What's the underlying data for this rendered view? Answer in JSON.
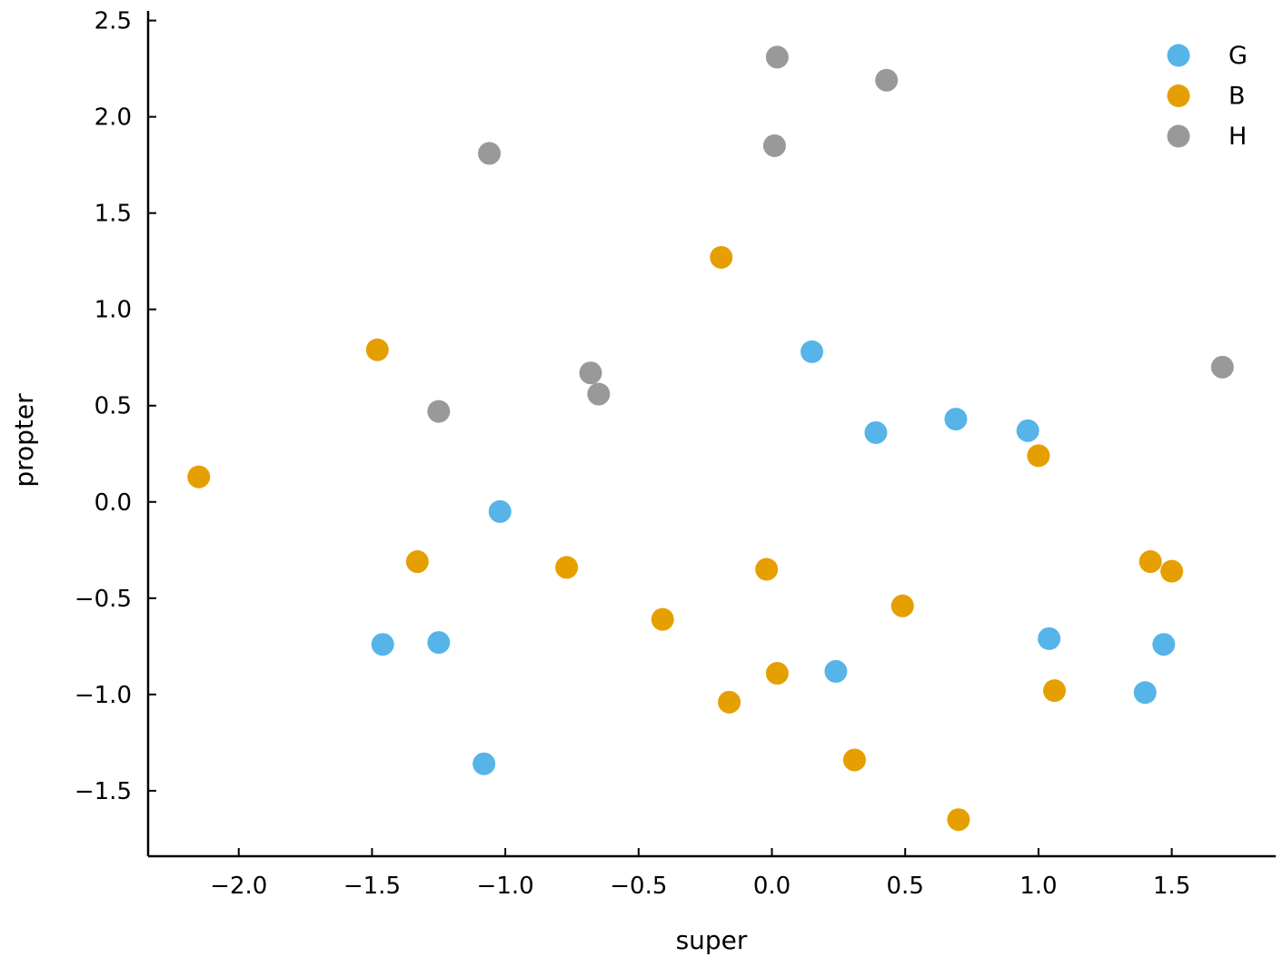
{
  "chart_data": {
    "type": "scatter",
    "xlabel": "super",
    "ylabel": "propter",
    "xlim": [
      -2.34,
      1.89
    ],
    "ylim": [
      -1.84,
      2.55
    ],
    "xticks": [
      -2.0,
      -1.5,
      -1.0,
      -0.5,
      0.0,
      0.5,
      1.0,
      1.5
    ],
    "xtick_labels": [
      "−2.0",
      "−1.5",
      "−1.0",
      "−0.5",
      "0.0",
      "0.5",
      "1.0",
      "1.5"
    ],
    "yticks": [
      -1.5,
      -1.0,
      -0.5,
      0.0,
      0.5,
      1.0,
      1.5,
      2.0,
      2.5
    ],
    "ytick_labels": [
      "−1.5",
      "−1.0",
      "−0.5",
      "0.0",
      "0.5",
      "1.0",
      "1.5",
      "2.0",
      "2.5"
    ],
    "grid": false,
    "legend_position": "top-right",
    "series": [
      {
        "name": "G",
        "color": "#56B4E9",
        "points": [
          [
            -1.46,
            -0.74
          ],
          [
            -1.25,
            -0.73
          ],
          [
            -1.08,
            -1.36
          ],
          [
            -1.02,
            -0.05
          ],
          [
            0.15,
            0.78
          ],
          [
            0.24,
            -0.88
          ],
          [
            0.39,
            0.36
          ],
          [
            0.69,
            0.43
          ],
          [
            0.96,
            0.37
          ],
          [
            1.04,
            -0.71
          ],
          [
            1.4,
            -0.99
          ],
          [
            1.47,
            -0.74
          ]
        ]
      },
      {
        "name": "B",
        "color": "#E69F00",
        "points": [
          [
            -2.15,
            0.13
          ],
          [
            -1.48,
            0.79
          ],
          [
            -1.33,
            -0.31
          ],
          [
            -0.77,
            -0.34
          ],
          [
            -0.41,
            -0.61
          ],
          [
            -0.19,
            1.27
          ],
          [
            -0.16,
            -1.04
          ],
          [
            -0.02,
            -0.35
          ],
          [
            0.02,
            -0.89
          ],
          [
            0.31,
            -1.34
          ],
          [
            0.49,
            -0.54
          ],
          [
            0.7,
            -1.65
          ],
          [
            1.0,
            0.24
          ],
          [
            1.06,
            -0.98
          ],
          [
            1.42,
            -0.31
          ],
          [
            1.5,
            -0.36
          ]
        ]
      },
      {
        "name": "H",
        "color": "#999999",
        "points": [
          [
            -1.25,
            0.47
          ],
          [
            -1.06,
            1.81
          ],
          [
            -0.68,
            0.67
          ],
          [
            -0.65,
            0.56
          ],
          [
            0.01,
            1.85
          ],
          [
            0.02,
            2.31
          ],
          [
            0.43,
            2.19
          ],
          [
            1.69,
            0.7
          ]
        ]
      }
    ]
  }
}
